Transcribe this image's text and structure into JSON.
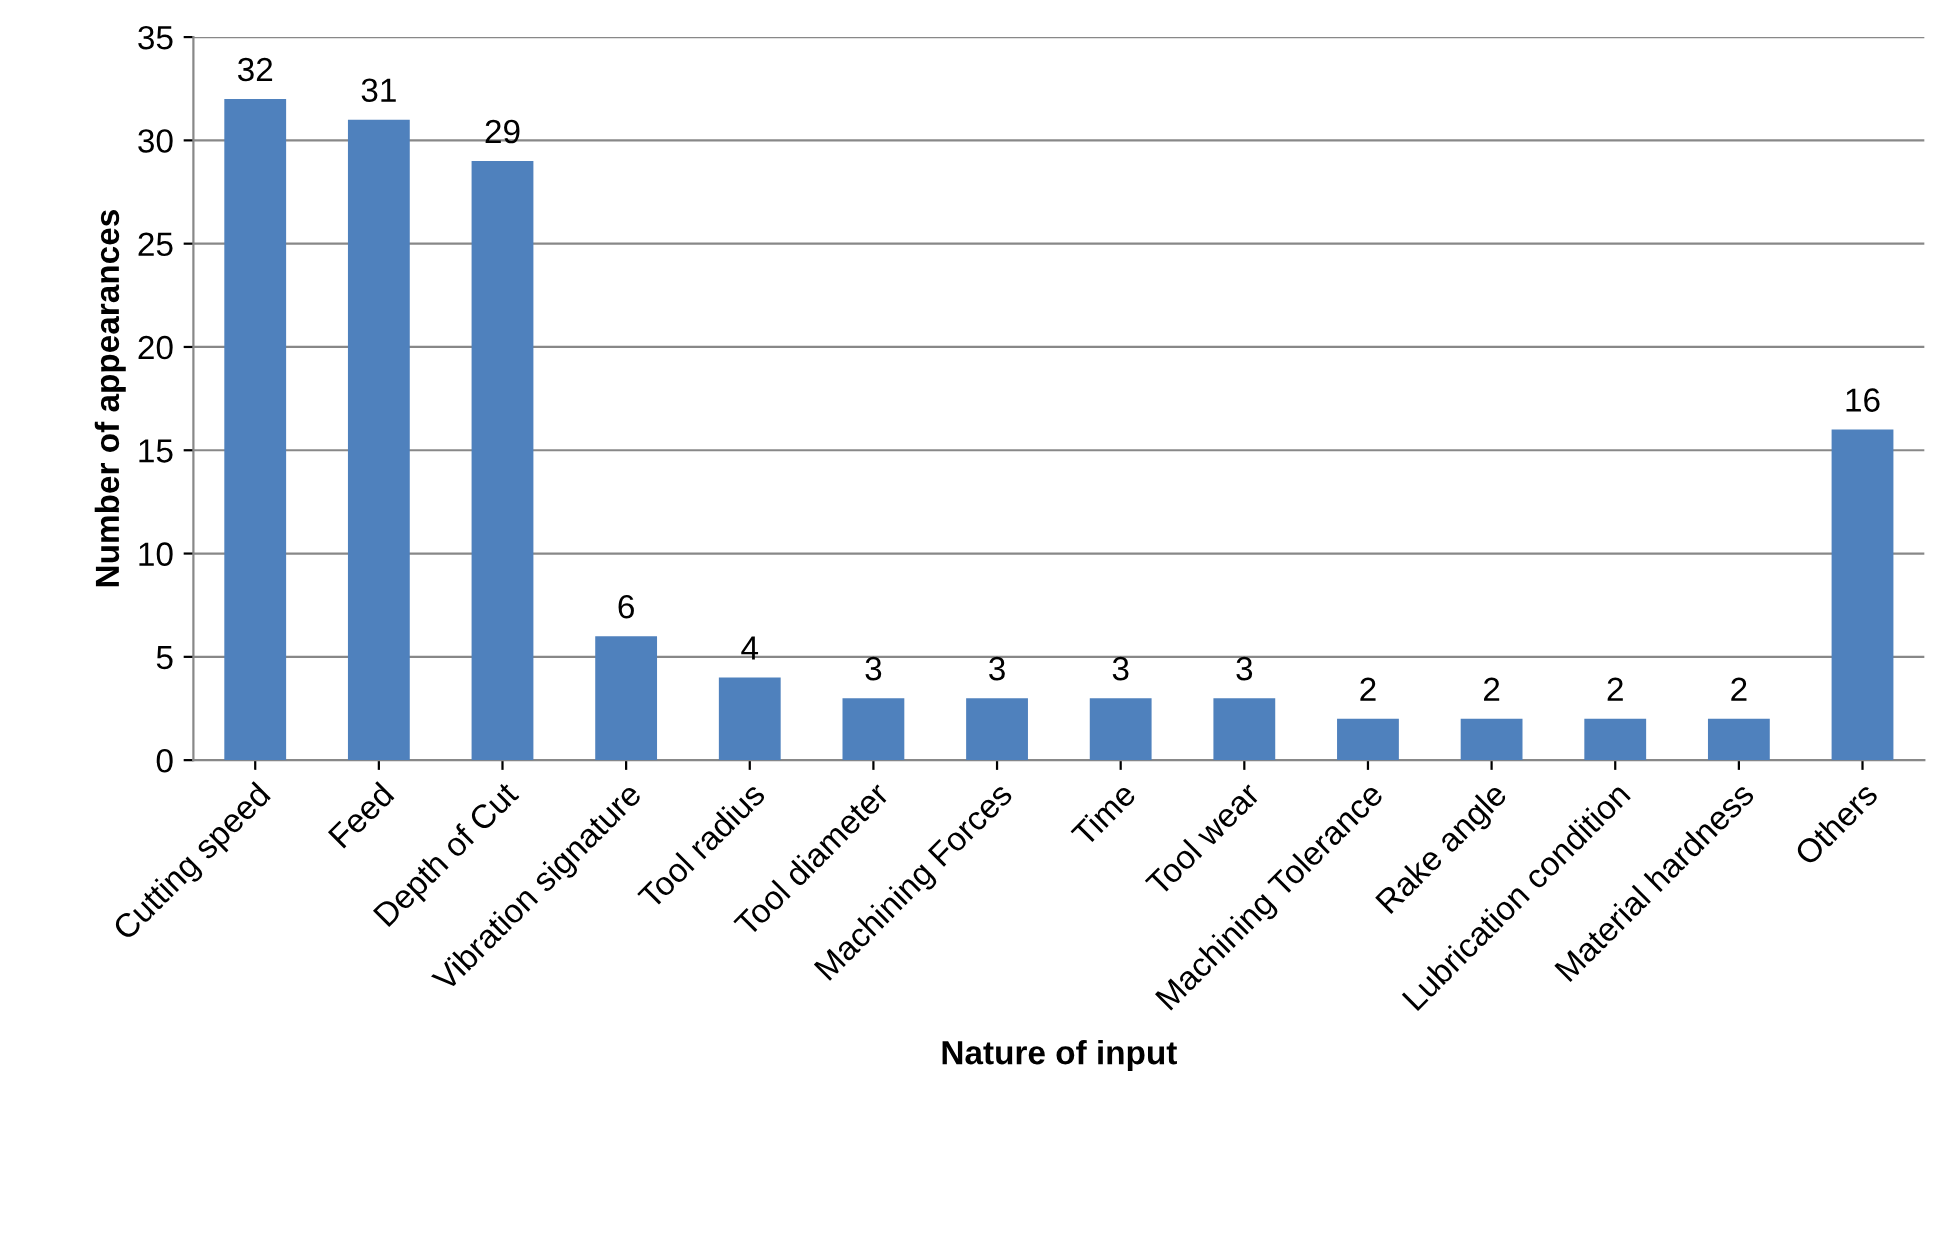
{
  "chart_data": {
    "type": "bar",
    "xlabel": "Nature of input",
    "ylabel": "Number of appearances",
    "categories": [
      "Cutting speed",
      "Feed",
      "Depth of Cut",
      "Vibration signature",
      "Tool radius",
      "Tool diameter",
      "Machining Forces",
      "Time",
      "Tool wear",
      "Machining Tolerance",
      "Rake angle",
      "Lubrication condition",
      "Material hardness",
      "Others"
    ],
    "values": [
      32,
      31,
      29,
      6,
      4,
      3,
      3,
      3,
      3,
      2,
      2,
      2,
      2,
      16
    ],
    "color": "#4f81bd",
    "ylim": [
      0,
      35
    ],
    "yticks": [
      0,
      5,
      10,
      15,
      20,
      25,
      30,
      35
    ],
    "grid": "y",
    "data_labels": true
  }
}
